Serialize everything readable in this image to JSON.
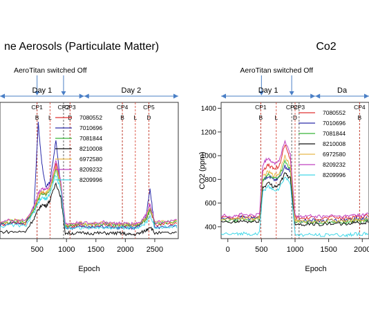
{
  "chart_data": [
    {
      "type": "line",
      "title": "ne Aerosols (Particulate Matter)",
      "xlabel": "Epoch",
      "ylabel": "",
      "xlim": [
        -130,
        2900
      ],
      "ylim": [
        0,
        1
      ],
      "xticks": [
        500,
        1000,
        1500,
        2000,
        2500
      ],
      "legend_position": "top-center",
      "periods": [
        {
          "label": "Day 1",
          "from": -130,
          "to": 1300
        },
        {
          "label": "Day 2",
          "from": 1300,
          "to": 2900
        }
      ],
      "annotation": {
        "label": "AeroTitan switched Off",
        "arrows_at": [
          500,
          950
        ]
      },
      "checkpoints": [
        {
          "label": "CP1",
          "x": 500
        },
        {
          "label": "CP2",
          "x": 950
        },
        {
          "label": "CP3",
          "x": 1060
        },
        {
          "label": "CP4",
          "x": 1950
        },
        {
          "label": "CP5",
          "x": 2400
        }
      ],
      "markers": [
        {
          "label": "B",
          "x": 500
        },
        {
          "label": "L",
          "x": 720
        },
        {
          "label": "D",
          "x": 1060
        },
        {
          "label": "B",
          "x": 1950
        },
        {
          "label": "L",
          "x": 2170
        },
        {
          "label": "D",
          "x": 2400
        }
      ],
      "series": [
        {
          "name": "7080552",
          "color": "#e03030",
          "offset": 0.0,
          "y": [
            0.1,
            0.12,
            0.11,
            0.22,
            0.3,
            0.34,
            0.33,
            0.36,
            0.55,
            0.4,
            0.09,
            0.09,
            0.1,
            0.09,
            0.1,
            0.1,
            0.09,
            0.09,
            0.09,
            0.09,
            0.1,
            0.14,
            0.22,
            0.1,
            0.11,
            0.11
          ]
        },
        {
          "name": "7010696",
          "color": "#2a2aa8",
          "offset": 0.0,
          "y": [
            0.1,
            0.12,
            0.11,
            0.24,
            0.85,
            0.55,
            0.38,
            0.42,
            0.72,
            0.4,
            0.08,
            0.08,
            0.09,
            0.08,
            0.09,
            0.09,
            0.08,
            0.08,
            0.08,
            0.08,
            0.1,
            0.16,
            0.36,
            0.08,
            0.09,
            0.09
          ]
        },
        {
          "name": "7081844",
          "color": "#37b537",
          "offset": 0.01,
          "y": [
            0.1,
            0.12,
            0.11,
            0.2,
            0.28,
            0.32,
            0.31,
            0.35,
            0.5,
            0.38,
            0.09,
            0.09,
            0.1,
            0.09,
            0.1,
            0.1,
            0.09,
            0.09,
            0.09,
            0.09,
            0.1,
            0.13,
            0.2,
            0.1,
            0.11,
            0.11
          ]
        },
        {
          "name": "8210008",
          "color": "#111111",
          "offset": -0.05,
          "y": [
            0.1,
            0.1,
            0.1,
            0.2,
            0.26,
            0.3,
            0.29,
            0.33,
            0.46,
            0.36,
            0.09,
            0.09,
            0.09,
            0.09,
            0.09,
            0.09,
            0.09,
            0.09,
            0.08,
            0.08,
            0.09,
            0.11,
            0.14,
            0.09,
            0.09,
            0.09
          ]
        },
        {
          "name": "6972580",
          "color": "#e8b84a",
          "offset": 0.015,
          "y": [
            0.1,
            0.12,
            0.11,
            0.21,
            0.29,
            0.33,
            0.32,
            0.35,
            0.52,
            0.39,
            0.09,
            0.09,
            0.1,
            0.09,
            0.1,
            0.1,
            0.09,
            0.09,
            0.09,
            0.09,
            0.1,
            0.14,
            0.21,
            0.1,
            0.11,
            0.11
          ]
        },
        {
          "name": "8209232",
          "color": "#c040c0",
          "offset": 0.02,
          "y": [
            0.1,
            0.12,
            0.11,
            0.22,
            0.31,
            0.35,
            0.34,
            0.37,
            0.56,
            0.41,
            0.09,
            0.09,
            0.1,
            0.09,
            0.1,
            0.1,
            0.09,
            0.09,
            0.09,
            0.09,
            0.1,
            0.15,
            0.24,
            0.1,
            0.11,
            0.11
          ]
        },
        {
          "name": "8209996",
          "color": "#40d8e8",
          "offset": -0.01,
          "y": [
            0.1,
            0.11,
            0.1,
            0.2,
            0.27,
            0.31,
            0.3,
            0.34,
            0.48,
            0.37,
            0.09,
            0.09,
            0.09,
            0.09,
            0.09,
            0.09,
            0.09,
            0.09,
            0.09,
            0.09,
            0.1,
            0.12,
            0.18,
            0.09,
            0.1,
            0.1
          ]
        }
      ],
      "x": [
        -130,
        100,
        300,
        450,
        520,
        580,
        650,
        720,
        820,
        900,
        980,
        1100,
        1250,
        1400,
        1550,
        1700,
        1850,
        1950,
        2050,
        2150,
        2250,
        2350,
        2420,
        2500,
        2700,
        2900
      ]
    },
    {
      "type": "line",
      "title": "Co2",
      "xlabel": "Epoch",
      "ylabel": "CO2 (ppm)",
      "xlim": [
        -100,
        2100
      ],
      "ylim": [
        300,
        1450
      ],
      "xticks": [
        0,
        500,
        1000,
        1500,
        2000
      ],
      "yticks": [
        400,
        600,
        800,
        1000,
        1200,
        1400
      ],
      "legend_position": "top-center",
      "periods": [
        {
          "label": "Day 1",
          "from": -100,
          "to": 1300
        },
        {
          "label": "Da",
          "from": 1300,
          "to": 2100
        }
      ],
      "annotation": {
        "label": "AeroTitan switched Off",
        "arrows_at": [
          500,
          950
        ]
      },
      "checkpoints": [
        {
          "label": "CP1",
          "x": 490
        },
        {
          "label": "CP2",
          "x": 950
        },
        {
          "label": "CP3",
          "x": 1060
        },
        {
          "label": "CP4",
          "x": 1960
        }
      ],
      "markers": [
        {
          "label": "B",
          "x": 490
        },
        {
          "label": "L",
          "x": 720
        },
        {
          "label": "D",
          "x": 1000
        },
        {
          "label": "B",
          "x": 1960
        }
      ],
      "series": [
        {
          "name": "7080552",
          "color": "#e03030",
          "offset": 20,
          "y": [
            460,
            455,
            470,
            460,
            470,
            860,
            900,
            870,
            880,
            1080,
            950,
            460,
            450,
            455,
            450,
            460,
            450,
            455,
            470,
            460,
            480
          ]
        },
        {
          "name": "7010696",
          "color": "#2a2aa8",
          "offset": 10,
          "y": [
            460,
            455,
            470,
            460,
            470,
            780,
            820,
            790,
            800,
            900,
            860,
            450,
            440,
            445,
            440,
            450,
            440,
            445,
            460,
            450,
            470
          ]
        },
        {
          "name": "7081844",
          "color": "#37b537",
          "offset": 0,
          "y": [
            455,
            450,
            465,
            455,
            465,
            800,
            840,
            810,
            820,
            950,
            880,
            445,
            435,
            440,
            435,
            445,
            435,
            440,
            455,
            445,
            460
          ]
        },
        {
          "name": "8210008",
          "color": "#111111",
          "offset": -10,
          "y": [
            450,
            445,
            460,
            450,
            460,
            740,
            780,
            750,
            760,
            860,
            820,
            440,
            430,
            435,
            430,
            440,
            430,
            435,
            450,
            440,
            455
          ]
        },
        {
          "name": "6972580",
          "color": "#e8b84a",
          "offset": 5,
          "y": [
            460,
            455,
            470,
            460,
            470,
            820,
            860,
            830,
            840,
            1000,
            900,
            450,
            440,
            445,
            440,
            450,
            440,
            445,
            460,
            450,
            470
          ]
        },
        {
          "name": "8209232",
          "color": "#c040c0",
          "offset": 25,
          "y": [
            470,
            465,
            480,
            470,
            480,
            900,
            960,
            910,
            930,
            1100,
            980,
            470,
            460,
            465,
            460,
            470,
            460,
            465,
            480,
            470,
            490
          ]
        },
        {
          "name": "8209996",
          "color": "#40d8e8",
          "offset": -60,
          "y": [
            400,
            395,
            405,
            400,
            405,
            760,
            800,
            770,
            780,
            880,
            830,
            395,
            390,
            392,
            390,
            395,
            388,
            392,
            400,
            395,
            405
          ]
        }
      ],
      "x": [
        -100,
        100,
        200,
        350,
        470,
        520,
        600,
        680,
        760,
        850,
        930,
        1000,
        1100,
        1250,
        1400,
        1550,
        1700,
        1800,
        1900,
        2000,
        2100
      ]
    }
  ]
}
